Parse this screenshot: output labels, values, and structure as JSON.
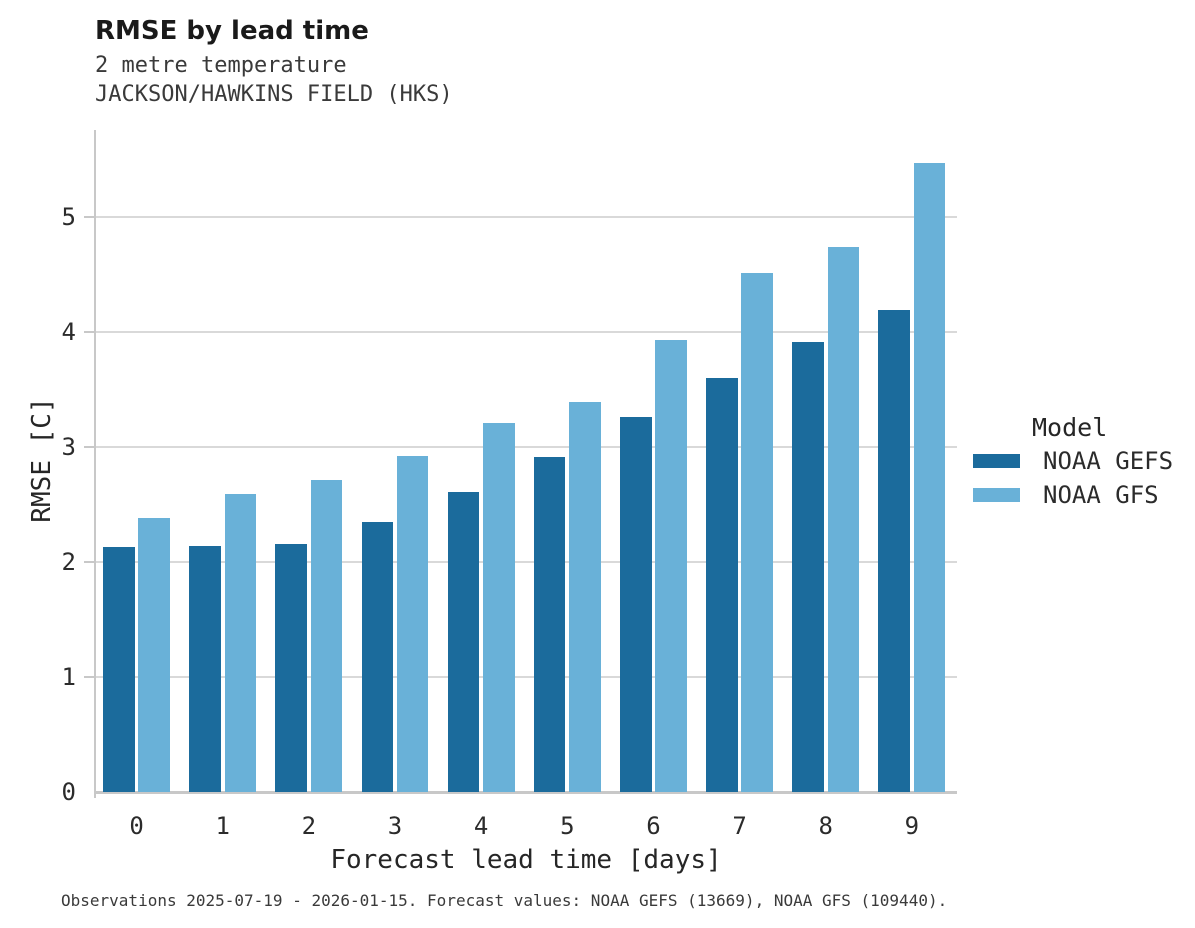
{
  "header": {
    "title": "RMSE by lead time",
    "subtitle_line1": "2 metre temperature",
    "subtitle_line2": "JACKSON/HAWKINS FIELD (HKS)"
  },
  "caption": "Observations 2025-07-19 - 2026-01-15. Forecast values: NOAA GEFS (13669), NOAA GFS (109440).",
  "legend": {
    "title": "Model",
    "items": [
      {
        "label": "NOAA GEFS",
        "color": "#1b6b9c"
      },
      {
        "label": "NOAA GFS",
        "color": "#69b1d8"
      }
    ]
  },
  "colors": {
    "gefs_dark_blue": "#1b6b9c",
    "gfs_light_blue": "#69b1d8",
    "gridline_gray": "#d9d9d9",
    "axis_spine_gray": "#c8c8c8"
  },
  "chart_data": {
    "type": "bar",
    "title": "RMSE by lead time",
    "subtitle": [
      "2 metre temperature",
      "JACKSON/HAWKINS FIELD (HKS)"
    ],
    "xlabel": "Forecast lead time [days]",
    "ylabel": "RMSE [C]",
    "categories": [
      "0",
      "1",
      "2",
      "3",
      "4",
      "5",
      "6",
      "7",
      "8",
      "9"
    ],
    "series": [
      {
        "name": "NOAA GEFS",
        "color": "#1b6b9c",
        "values": [
          2.13,
          2.14,
          2.16,
          2.35,
          2.61,
          2.91,
          3.26,
          3.6,
          3.91,
          4.19
        ]
      },
      {
        "name": "NOAA GFS",
        "color": "#69b1d8",
        "values": [
          2.38,
          2.59,
          2.71,
          2.92,
          3.21,
          3.39,
          3.93,
          4.51,
          4.74,
          5.47
        ]
      }
    ],
    "ylim": [
      0,
      5.76
    ],
    "yticks": [
      0,
      1,
      2,
      3,
      4,
      5
    ],
    "grid": "horizontal-only",
    "legend_title": "Model",
    "legend_position": "right",
    "caption": "Observations 2025-07-19 - 2026-01-15. Forecast values: NOAA GEFS (13669), NOAA GFS (109440)."
  }
}
